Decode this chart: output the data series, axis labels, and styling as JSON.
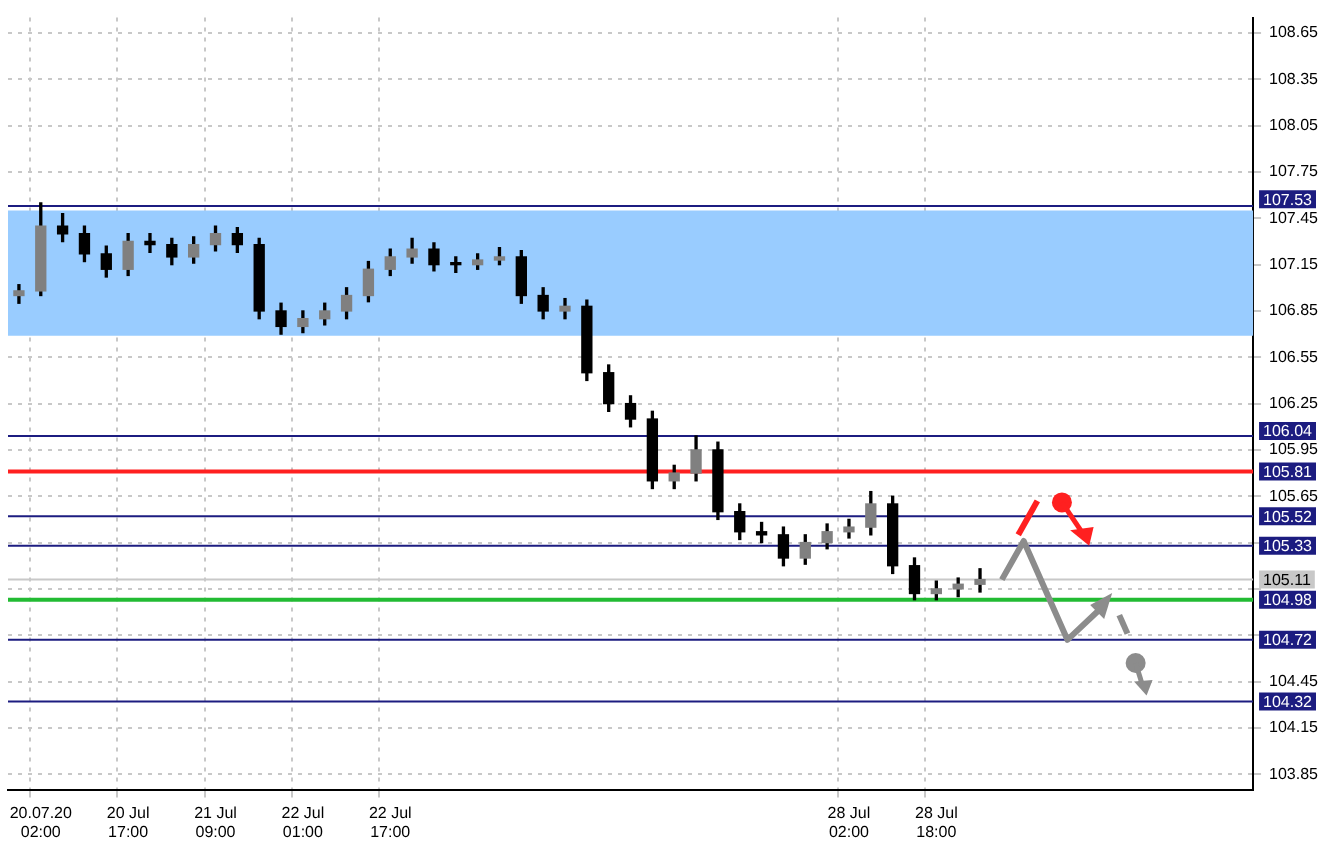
{
  "chart_data": {
    "type": "candlestick",
    "color": "#000000",
    "colors": [
      "#808080",
      "#808080",
      "#000000",
      "#000000",
      "#000000",
      "#808080",
      "#000000",
      "#000000",
      "#808080",
      "#808080",
      "#000000",
      "#000000",
      "#000000",
      "#808080",
      "#808080",
      "#808080",
      "#808080",
      "#808080",
      "#808080",
      "#000000",
      "#000000",
      "#808080",
      "#808080",
      "#000000",
      "#000000",
      "#808080",
      "#000000",
      "#000000",
      "#000000",
      "#000000",
      "#808080",
      "#808080",
      "#000000",
      "#000000",
      "#000000",
      "#000000",
      "#808080",
      "#808080",
      "#808080",
      "#808080",
      "#000000",
      "#000000",
      "#808080",
      "#808080",
      "#808080",
      null,
      null,
      null,
      null,
      null,
      null,
      null,
      null,
      null,
      null,
      null,
      null
    ],
    "categories": [
      null,
      [
        "20.07.20",
        "02:00"
      ],
      null,
      null,
      null,
      [
        "20 Jul",
        "17:00"
      ],
      null,
      null,
      null,
      [
        "21 Jul",
        "09:00"
      ],
      null,
      null,
      null,
      [
        "22 Jul",
        "01:00"
      ],
      null,
      null,
      null,
      [
        "22 Jul",
        "17:00"
      ],
      null,
      null,
      null,
      null,
      null,
      null,
      null,
      null,
      null,
      null,
      null,
      null,
      null,
      null,
      null,
      null,
      null,
      null,
      null,
      null,
      [
        "28 Jul",
        "02:00"
      ],
      null,
      null,
      null,
      [
        "28 Jul",
        "18:00"
      ],
      null,
      null,
      null,
      null,
      null,
      null,
      null,
      null,
      null,
      null,
      null,
      null,
      null,
      null
    ],
    "ohlc": [
      [
        106.95,
        107.02,
        106.9,
        106.98
      ],
      [
        106.98,
        107.55,
        106.95,
        107.4
      ],
      [
        107.4,
        107.48,
        107.3,
        107.35
      ],
      [
        107.35,
        107.4,
        107.17,
        107.22
      ],
      [
        107.22,
        107.27,
        107.07,
        107.12
      ],
      [
        107.12,
        107.35,
        107.08,
        107.3
      ],
      [
        107.3,
        107.35,
        107.23,
        107.28
      ],
      [
        107.28,
        107.32,
        107.15,
        107.2
      ],
      [
        107.2,
        107.33,
        107.16,
        107.28
      ],
      [
        107.28,
        107.4,
        107.24,
        107.35
      ],
      [
        107.35,
        107.39,
        107.23,
        107.28
      ],
      [
        107.28,
        107.32,
        106.8,
        106.85
      ],
      [
        106.85,
        106.9,
        106.7,
        106.75
      ],
      [
        106.75,
        106.85,
        106.71,
        106.8
      ],
      [
        106.8,
        106.9,
        106.76,
        106.85
      ],
      [
        106.85,
        107.0,
        106.8,
        106.95
      ],
      [
        106.95,
        107.17,
        106.91,
        107.12
      ],
      [
        107.12,
        107.25,
        107.08,
        107.2
      ],
      [
        107.2,
        107.32,
        107.16,
        107.25
      ],
      [
        107.25,
        107.29,
        107.11,
        107.15
      ],
      [
        107.15,
        107.2,
        107.1,
        107.15
      ],
      [
        107.15,
        107.22,
        107.12,
        107.18
      ],
      [
        107.18,
        107.26,
        107.15,
        107.2
      ],
      [
        107.2,
        107.24,
        106.9,
        106.95
      ],
      [
        106.95,
        107.0,
        106.8,
        106.85
      ],
      [
        106.85,
        106.93,
        106.8,
        106.88
      ],
      [
        106.88,
        106.92,
        106.4,
        106.45
      ],
      [
        106.45,
        106.5,
        106.2,
        106.25
      ],
      [
        106.25,
        106.3,
        106.1,
        106.15
      ],
      [
        106.15,
        106.2,
        105.7,
        105.75
      ],
      [
        105.75,
        105.85,
        105.7,
        105.8
      ],
      [
        105.8,
        106.04,
        105.75,
        105.95
      ],
      [
        105.95,
        106.0,
        105.5,
        105.55
      ],
      [
        105.55,
        105.6,
        105.37,
        105.42
      ],
      [
        105.42,
        105.48,
        105.35,
        105.4
      ],
      [
        105.4,
        105.45,
        105.2,
        105.25
      ],
      [
        105.25,
        105.4,
        105.21,
        105.35
      ],
      [
        105.35,
        105.47,
        105.31,
        105.42
      ],
      [
        105.42,
        105.5,
        105.38,
        105.45
      ],
      [
        105.45,
        105.68,
        105.4,
        105.6
      ],
      [
        105.6,
        105.65,
        105.15,
        105.2
      ],
      [
        105.2,
        105.25,
        104.98,
        105.02
      ],
      [
        105.02,
        105.1,
        104.98,
        105.05
      ],
      [
        105.05,
        105.12,
        105.0,
        105.08
      ],
      [
        105.08,
        105.18,
        105.03,
        105.11
      ],
      null,
      null,
      null,
      null,
      null,
      null,
      null,
      null,
      null,
      null,
      null,
      null
    ],
    "ylim": [
      103.75,
      108.75
    ],
    "yticks": [
      103.85,
      104.15,
      104.45,
      {
        "value": 104.75,
        "label": null
      },
      {
        "value": 105.05,
        "label": null
      },
      {
        "value": 105.35,
        "label": null
      },
      105.65,
      105.95,
      106.25,
      106.55,
      106.85,
      107.15,
      107.45,
      107.75,
      108.05,
      108.35,
      108.65
    ],
    "grid": true,
    "bands": [
      {
        "axis": "y",
        "from": 106.69,
        "to": 107.5,
        "color": "#99ccff"
      }
    ],
    "ref_lines": [
      {
        "axis": "y",
        "value": 107.53,
        "label": "107.53",
        "color": "#1c1c80"
      },
      {
        "axis": "y",
        "value": 106.04,
        "label": "106.04",
        "color": "#1c1c80"
      },
      {
        "axis": "y",
        "value": 105.81,
        "label": "105.81",
        "color": "#1c1c80"
      },
      {
        "axis": "y",
        "value": 105.81,
        "color": "#ff2020"
      },
      {
        "axis": "y",
        "value": 105.52,
        "label": "105.52",
        "color": "#1c1c80"
      },
      {
        "axis": "y",
        "value": 105.33,
        "label": "105.33",
        "color": "#1c1c80"
      },
      {
        "axis": "y",
        "value": 105.11,
        "label": "105.11",
        "color": "#c8c8c8"
      },
      {
        "axis": "y",
        "value": 104.98,
        "label": "104.98",
        "color": "#1c1c80"
      },
      {
        "axis": "y",
        "value": 104.98,
        "color": "#22bb33"
      },
      {
        "axis": "y",
        "value": 104.72,
        "label": "104.72",
        "color": "#1c1c80"
      },
      {
        "axis": "y",
        "value": 104.32,
        "label": "104.32",
        "color": "#1c1c80"
      }
    ]
  }
}
